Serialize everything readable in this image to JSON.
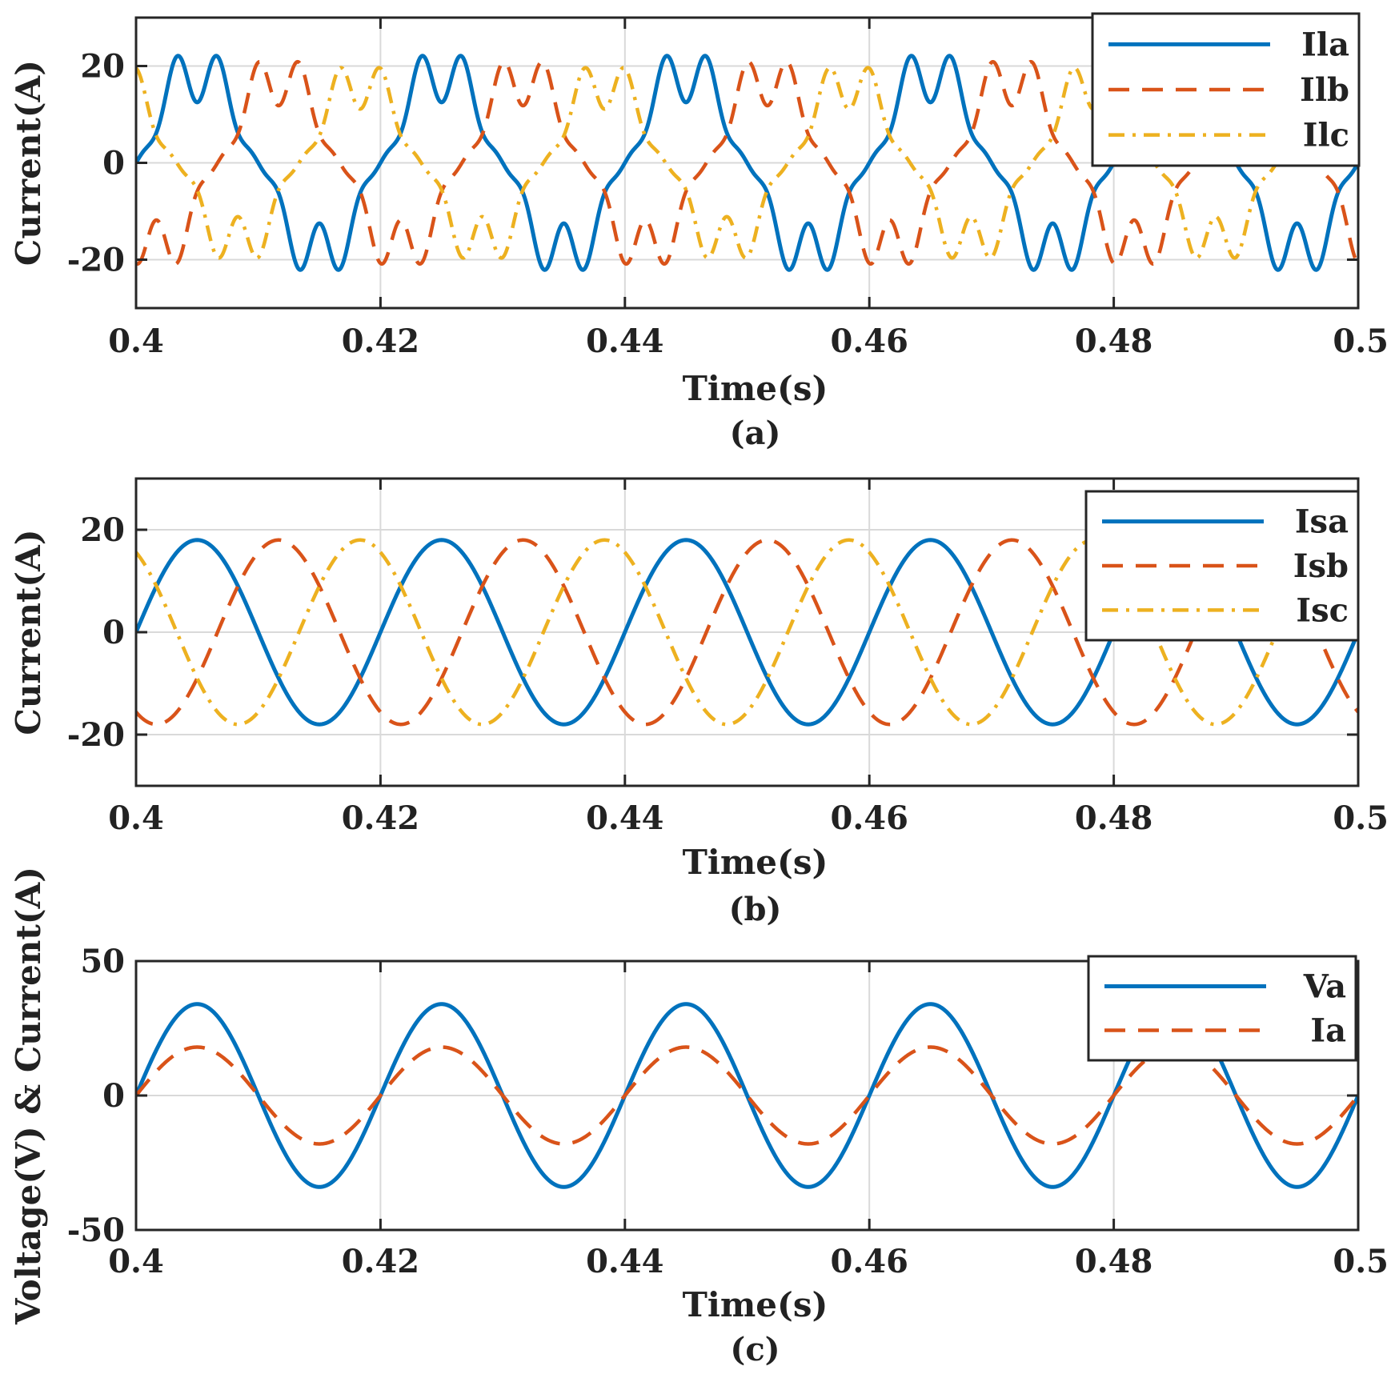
{
  "colors": {
    "blue": "#0072BD",
    "orange": "#D95319",
    "yellow": "#EDB120"
  },
  "chart_data": [
    {
      "type": "line",
      "id": "a",
      "caption": "(a)",
      "xlabel": "Time(s)",
      "ylabel": "Current(A)",
      "xlim": [
        0.4,
        0.5
      ],
      "ylim": [
        -30,
        30
      ],
      "xticks": [
        0.4,
        0.42,
        0.44,
        0.46,
        0.48,
        0.5
      ],
      "xtick_labels": [
        "0.4",
        "0.42",
        "0.44",
        "0.46",
        "0.48",
        "0.5"
      ],
      "yticks": [
        -20,
        0,
        20
      ],
      "ytick_labels": [
        "-20",
        "0",
        "20"
      ],
      "grid": true,
      "legend_position": "top-right",
      "frequency_hz": 50,
      "waveform": "distorted-load-current",
      "series": [
        {
          "name": "Ila",
          "style": "solid",
          "color": "#0072BD",
          "amplitude": 18,
          "phase_deg": 0
        },
        {
          "name": "Ilb",
          "style": "dashed",
          "color": "#D95319",
          "amplitude": 17,
          "phase_deg": -120
        },
        {
          "name": "Ilc",
          "style": "dashdot",
          "color": "#EDB120",
          "amplitude": 16,
          "phase_deg": 120
        }
      ]
    },
    {
      "type": "line",
      "id": "b",
      "caption": "(b)",
      "xlabel": "Time(s)",
      "ylabel": "Current(A)",
      "xlim": [
        0.4,
        0.5
      ],
      "ylim": [
        -30,
        30
      ],
      "xticks": [
        0.4,
        0.42,
        0.44,
        0.46,
        0.48,
        0.5
      ],
      "xtick_labels": [
        "0.4",
        "0.42",
        "0.44",
        "0.46",
        "0.48",
        "0.5"
      ],
      "yticks": [
        -20,
        0,
        20
      ],
      "ytick_labels": [
        "-20",
        "0",
        "20"
      ],
      "grid": true,
      "legend_position": "top-right",
      "frequency_hz": 50,
      "waveform": "sinusoidal",
      "series": [
        {
          "name": "Isa",
          "style": "solid",
          "color": "#0072BD",
          "amplitude": 18,
          "phase_deg": 0
        },
        {
          "name": "Isb",
          "style": "dashed",
          "color": "#D95319",
          "amplitude": 18,
          "phase_deg": -120
        },
        {
          "name": "Isc",
          "style": "dashdot",
          "color": "#EDB120",
          "amplitude": 18,
          "phase_deg": 120
        }
      ]
    },
    {
      "type": "line",
      "id": "c",
      "caption": "(c)",
      "xlabel": "Time(s)",
      "ylabel": "Voltage(V) & Current(A)",
      "xlim": [
        0.4,
        0.5
      ],
      "ylim": [
        -50,
        50
      ],
      "xticks": [
        0.4,
        0.42,
        0.44,
        0.46,
        0.48,
        0.5
      ],
      "xtick_labels": [
        "0.4",
        "0.42",
        "0.44",
        "0.46",
        "0.48",
        "0.5"
      ],
      "yticks": [
        -50,
        0,
        50
      ],
      "ytick_labels": [
        "-50",
        "0",
        "50"
      ],
      "grid": true,
      "legend_position": "top-right",
      "frequency_hz": 50,
      "waveform": "sinusoidal",
      "series": [
        {
          "name": "Va",
          "style": "solid",
          "color": "#0072BD",
          "amplitude": 34,
          "phase_deg": 0
        },
        {
          "name": "Ia",
          "style": "dashed",
          "color": "#D95319",
          "amplitude": 18,
          "phase_deg": 0
        }
      ]
    }
  ]
}
